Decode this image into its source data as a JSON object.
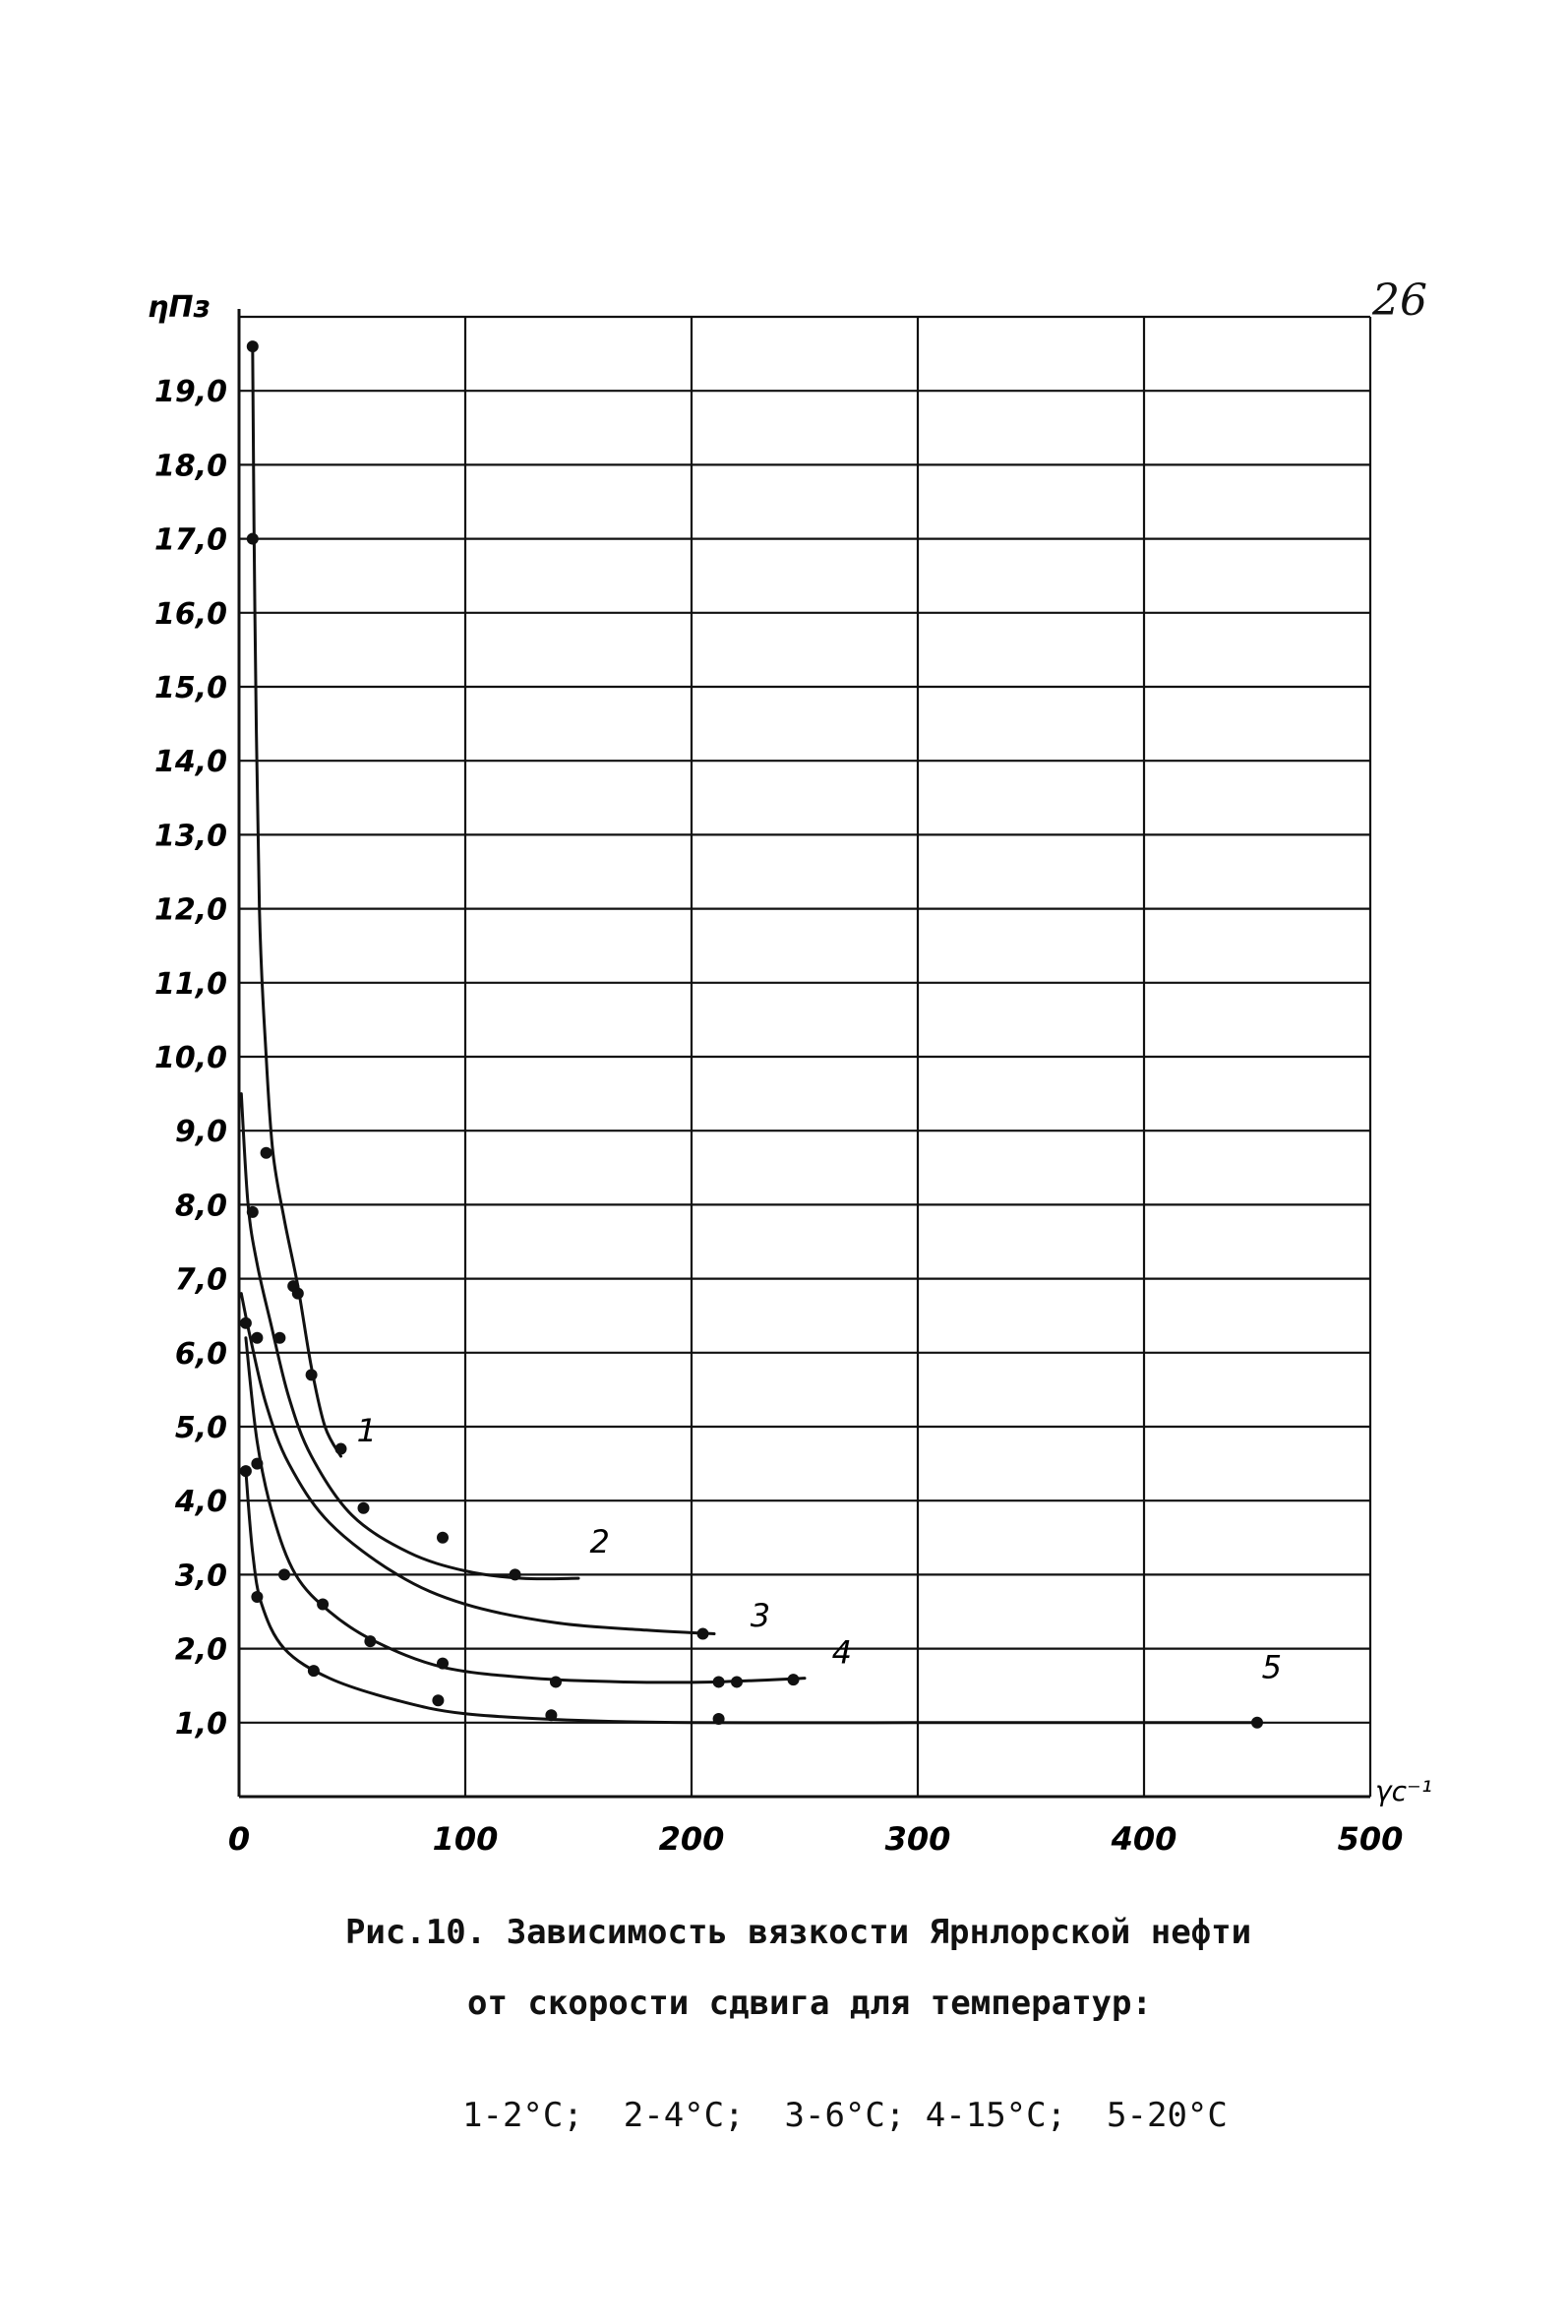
{
  "page_number": "26",
  "caption": {
    "line1": "Рис.10. Зависимость вязкости Ярнлорской нефти",
    "line2": "от скорости сдвига для температур:",
    "line3": "1-2°С;  2-4°С;  3-6°С; 4-15°С;  5-20°С"
  },
  "chart_data": {
    "type": "line",
    "ylabel": "ηПз",
    "xlabel": "γс⁻¹",
    "xlim": [
      0,
      500
    ],
    "ylim": [
      0,
      20
    ],
    "x_ticks": [
      "0",
      "100",
      "200",
      "300",
      "400",
      "500"
    ],
    "x_tick_values": [
      0,
      100,
      200,
      300,
      400,
      500
    ],
    "y_ticks": [
      "1,0",
      "2,0",
      "3,0",
      "4,0",
      "5,0",
      "6,0",
      "7,0",
      "8,0",
      "9,0",
      "10,0",
      "11,0",
      "12,0",
      "13,0",
      "14,0",
      "15,0",
      "16,0",
      "17,0",
      "18,0",
      "19,0"
    ],
    "y_tick_values": [
      1,
      2,
      3,
      4,
      5,
      6,
      7,
      8,
      9,
      10,
      11,
      12,
      13,
      14,
      15,
      16,
      17,
      18,
      19
    ],
    "grid": true,
    "series": [
      {
        "name": "1",
        "curve": [
          [
            6,
            19.6
          ],
          [
            7,
            16
          ],
          [
            9,
            12
          ],
          [
            12,
            10
          ],
          [
            15,
            8.7
          ],
          [
            20,
            7.8
          ],
          [
            26,
            6.9
          ],
          [
            32,
            5.8
          ],
          [
            38,
            5.0
          ],
          [
            45,
            4.6
          ]
        ],
        "points": [
          [
            6,
            19.6
          ],
          [
            6,
            17.0
          ],
          [
            12,
            8.7
          ],
          [
            24,
            6.9
          ],
          [
            26,
            6.8
          ],
          [
            32,
            5.7
          ],
          [
            45,
            4.7
          ]
        ]
      },
      {
        "name": "2",
        "curve": [
          [
            1,
            9.5
          ],
          [
            4,
            8.0
          ],
          [
            8,
            7.2
          ],
          [
            14,
            6.4
          ],
          [
            22,
            5.4
          ],
          [
            32,
            4.6
          ],
          [
            50,
            3.8
          ],
          [
            75,
            3.3
          ],
          [
            100,
            3.05
          ],
          [
            125,
            2.95
          ],
          [
            150,
            2.95
          ]
        ],
        "points": [
          [
            6,
            7.9
          ],
          [
            18,
            6.2
          ],
          [
            55,
            3.9
          ],
          [
            90,
            3.5
          ],
          [
            122,
            3.0
          ]
        ]
      },
      {
        "name": "3",
        "curve": [
          [
            1,
            6.8
          ],
          [
            5,
            6.2
          ],
          [
            12,
            5.3
          ],
          [
            22,
            4.5
          ],
          [
            40,
            3.7
          ],
          [
            70,
            3.0
          ],
          [
            100,
            2.6
          ],
          [
            140,
            2.35
          ],
          [
            180,
            2.25
          ],
          [
            210,
            2.2
          ]
        ],
        "points": [
          [
            3,
            6.4
          ],
          [
            8,
            6.2
          ],
          [
            205,
            2.2
          ]
        ]
      },
      {
        "name": "4",
        "curve": [
          [
            3,
            6.2
          ],
          [
            8,
            4.8
          ],
          [
            15,
            3.8
          ],
          [
            25,
            3.0
          ],
          [
            40,
            2.5
          ],
          [
            60,
            2.1
          ],
          [
            90,
            1.75
          ],
          [
            130,
            1.6
          ],
          [
            170,
            1.55
          ],
          [
            210,
            1.55
          ],
          [
            250,
            1.6
          ]
        ],
        "points": [
          [
            8,
            4.5
          ],
          [
            20,
            3.0
          ],
          [
            37,
            2.6
          ],
          [
            58,
            2.1
          ],
          [
            90,
            1.8
          ],
          [
            140,
            1.55
          ],
          [
            212,
            1.55
          ],
          [
            220,
            1.55
          ],
          [
            245,
            1.58
          ]
        ]
      },
      {
        "name": "5",
        "curve": [
          [
            3,
            4.4
          ],
          [
            6,
            3.3
          ],
          [
            10,
            2.6
          ],
          [
            20,
            2.0
          ],
          [
            40,
            1.6
          ],
          [
            70,
            1.3
          ],
          [
            100,
            1.12
          ],
          [
            150,
            1.03
          ],
          [
            200,
            1.0
          ],
          [
            300,
            1.0
          ],
          [
            400,
            1.0
          ],
          [
            450,
            1.0
          ]
        ],
        "points": [
          [
            3,
            4.4
          ],
          [
            8,
            2.7
          ],
          [
            33,
            1.7
          ],
          [
            88,
            1.3
          ],
          [
            138,
            1.1
          ],
          [
            212,
            1.05
          ],
          [
            450,
            1.0
          ]
        ]
      }
    ],
    "label_positions": {
      "1": [
        52,
        4.8
      ],
      "2": [
        155,
        3.3
      ],
      "3": [
        226,
        2.3
      ],
      "4": [
        262,
        1.8
      ],
      "5": [
        452,
        1.6
      ]
    }
  }
}
